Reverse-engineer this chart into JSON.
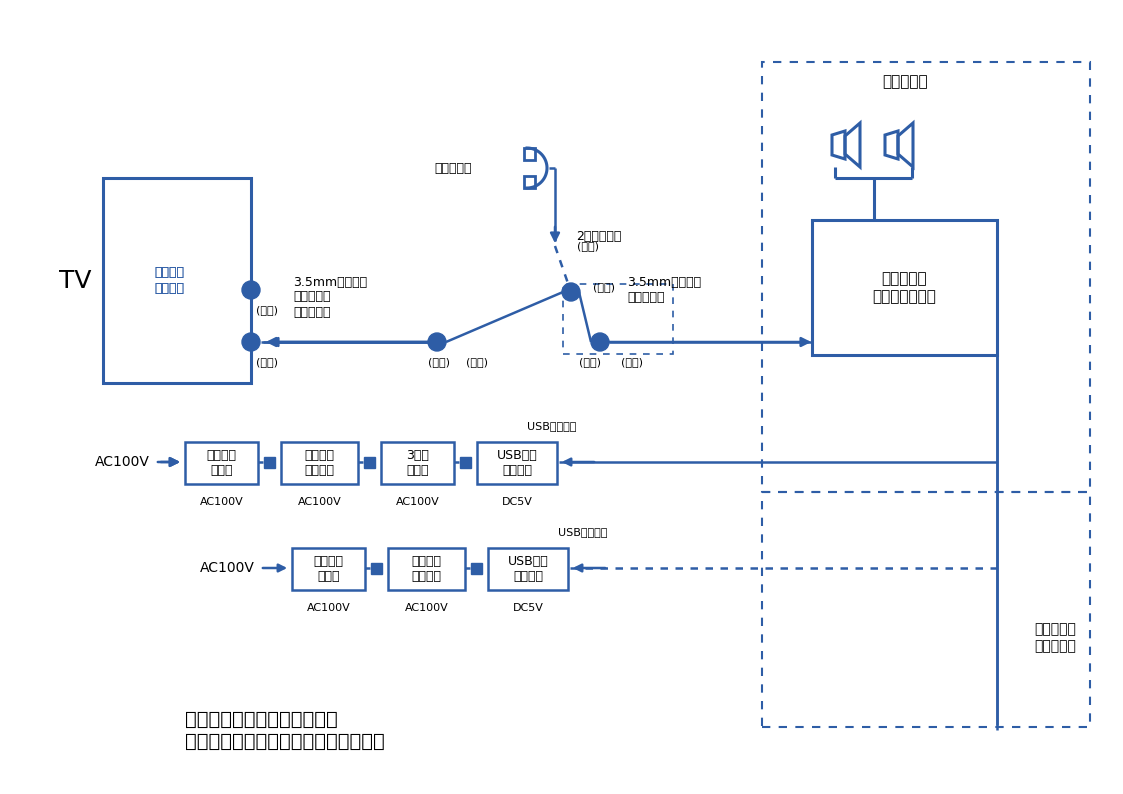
{
  "color": "#2E5DA6",
  "bg": "#FFFFFF",
  "tv_label": "TV",
  "earphone_label": "イヤホン\nジャック",
  "headphone_label": "ヘッドホン",
  "splitter_label": "2分岐コード",
  "ext_cord_label": "3.5mmステレオ\nミニプラグ\n延長コード",
  "stereo_plug_label": "3.5mmステレオ\nミニプラグ",
  "volume_label": "ボリューム\nコントローラー",
  "speaker_label": "スピーカー",
  "active_speaker_label": "アクティブ\nスピーカー",
  "table_tap1_label": "テーブル\nタップ",
  "timer1_label": "ボタン式\nタイマー",
  "splitter3_label": "3分岐\nタップ",
  "usb_adapter1_label": "USB給電\nアダプタ",
  "table_tap2_label": "テーブル\nタップ",
  "timer2_label": "ダイヤル\nタイマー",
  "usb_adapter2_label": "USB給電\nアダプタ",
  "ac100v": "AC100V",
  "dc5v": "DC5V",
  "usb_connector": "USBコネクタ",
  "osu": "(オス)",
  "mesu": "(メス)",
  "title": "アクティブスピーカーによる\n後ろ置きのテレビスピーカーの構成図"
}
